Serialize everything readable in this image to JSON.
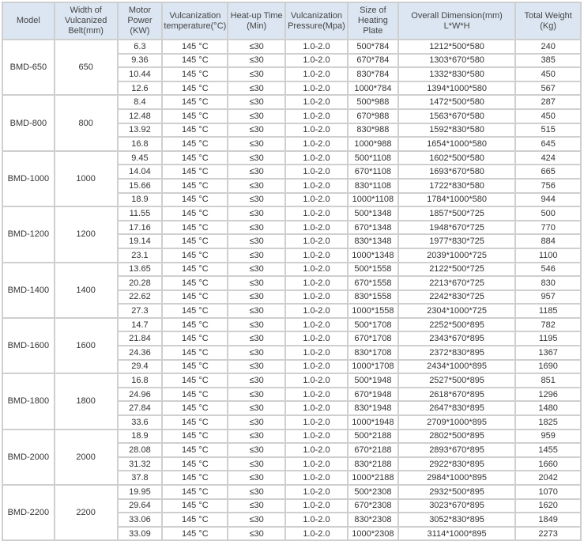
{
  "headers": [
    "Model",
    "Width of Vulcanized Belt(mm)",
    "Motor Power (KW)",
    "Vulcanization temperature(°C)",
    "Heat-up Time (Min)",
    "Vulcanization Pressure(Mpa)",
    "Size of Heating Plate",
    "Overall Dimension(mm) L*W*H",
    "Total Weight (Kg)"
  ],
  "colors": {
    "header_bg": "#dce6f2",
    "border": "#cfcfcf"
  },
  "groups": [
    {
      "model": "BMD-650",
      "width": "650",
      "rows": [
        [
          "6.3",
          "145 °C",
          "≤30",
          "1.0-2.0",
          "500*784",
          "1212*500*580",
          "240"
        ],
        [
          "9.36",
          "145 °C",
          "≤30",
          "1.0-2.0",
          "670*784",
          "1303*670*580",
          "385"
        ],
        [
          "10.44",
          "145 °C",
          "≤30",
          "1.0-2.0",
          "830*784",
          "1332*830*580",
          "450"
        ],
        [
          "12.6",
          "145 °C",
          "≤30",
          "1.0-2.0",
          "1000*784",
          "1394*1000*580",
          "567"
        ]
      ]
    },
    {
      "model": "BMD-800",
      "width": "800",
      "rows": [
        [
          "8.4",
          "145 °C",
          "≤30",
          "1.0-2.0",
          "500*988",
          "1472*500*580",
          "287"
        ],
        [
          "12.48",
          "145 °C",
          "≤30",
          "1.0-2.0",
          "670*988",
          "1563*670*580",
          "450"
        ],
        [
          "13.92",
          "145 °C",
          "≤30",
          "1.0-2.0",
          "830*988",
          "1592*830*580",
          "515"
        ],
        [
          "16.8",
          "145 °C",
          "≤30",
          "1.0-2.0",
          "1000*988",
          "1654*1000*580",
          "645"
        ]
      ]
    },
    {
      "model": "BMD-1000",
      "width": "1000",
      "rows": [
        [
          "9.45",
          "145 °C",
          "≤30",
          "1.0-2.0",
          "500*1108",
          "1602*500*580",
          "424"
        ],
        [
          "14.04",
          "145 °C",
          "≤30",
          "1.0-2.0",
          "670*1108",
          "1693*670*580",
          "665"
        ],
        [
          "15.66",
          "145 °C",
          "≤30",
          "1.0-2.0",
          "830*1108",
          "1722*830*580",
          "756"
        ],
        [
          "18.9",
          "145 °C",
          "≤30",
          "1.0-2.0",
          "1000*1108",
          "1784*1000*580",
          "944"
        ]
      ]
    },
    {
      "model": "BMD-1200",
      "width": "1200",
      "rows": [
        [
          "11.55",
          "145 °C",
          "≤30",
          "1.0-2.0",
          "500*1348",
          "1857*500*725",
          "500"
        ],
        [
          "17.16",
          "145 °C",
          "≤30",
          "1.0-2.0",
          "670*1348",
          "1948*670*725",
          "770"
        ],
        [
          "19.14",
          "145 °C",
          "≤30",
          "1.0-2.0",
          "830*1348",
          "1977*830*725",
          "884"
        ],
        [
          "23.1",
          "145 °C",
          "≤30",
          "1.0-2.0",
          "1000*1348",
          "2039*1000*725",
          "1100"
        ]
      ]
    },
    {
      "model": "BMD-1400",
      "width": "1400",
      "rows": [
        [
          "13.65",
          "145 °C",
          "≤30",
          "1.0-2.0",
          "500*1558",
          "2122*500*725",
          "546"
        ],
        [
          "20.28",
          "145 °C",
          "≤30",
          "1.0-2.0",
          "670*1558",
          "2213*670*725",
          "830"
        ],
        [
          "22.62",
          "145 °C",
          "≤30",
          "1.0-2.0",
          "830*1558",
          "2242*830*725",
          "957"
        ],
        [
          "27.3",
          "145 °C",
          "≤30",
          "1.0-2.0",
          "1000*1558",
          "2304*1000*725",
          "1185"
        ]
      ]
    },
    {
      "model": "BMD-1600",
      "width": "1600",
      "rows": [
        [
          "14.7",
          "145 °C",
          "≤30",
          "1.0-2.0",
          "500*1708",
          "2252*500*895",
          "782"
        ],
        [
          "21.84",
          "145 °C",
          "≤30",
          "1.0-2.0",
          "670*1708",
          "2343*670*895",
          "1195"
        ],
        [
          "24.36",
          "145 °C",
          "≤30",
          "1.0-2.0",
          "830*1708",
          "2372*830*895",
          "1367"
        ],
        [
          "29.4",
          "145 °C",
          "≤30",
          "1.0-2.0",
          "1000*1708",
          "2434*1000*895",
          "1690"
        ]
      ]
    },
    {
      "model": "BMD-1800",
      "width": "1800",
      "rows": [
        [
          "16.8",
          "145 °C",
          "≤30",
          "1.0-2.0",
          "500*1948",
          "2527*500*895",
          "851"
        ],
        [
          "24.96",
          "145 °C",
          "≤30",
          "1.0-2.0",
          "670*1948",
          "2618*670*895",
          "1296"
        ],
        [
          "27.84",
          "145 °C",
          "≤30",
          "1.0-2.0",
          "830*1948",
          "2647*830*895",
          "1480"
        ],
        [
          "33.6",
          "145 °C",
          "≤30",
          "1.0-2.0",
          "1000*1948",
          "2709*1000*895",
          "1825"
        ]
      ]
    },
    {
      "model": "BMD-2000",
      "width": "2000",
      "rows": [
        [
          "18.9",
          "145 °C",
          "≤30",
          "1.0-2.0",
          "500*2188",
          "2802*500*895",
          "959"
        ],
        [
          "28.08",
          "145 °C",
          "≤30",
          "1.0-2.0",
          "670*2188",
          "2893*670*895",
          "1455"
        ],
        [
          "31.32",
          "145 °C",
          "≤30",
          "1.0-2.0",
          "830*2188",
          "2922*830*895",
          "1660"
        ],
        [
          "37.8",
          "145 °C",
          "≤30",
          "1.0-2.0",
          "1000*2188",
          "2984*1000*895",
          "2042"
        ]
      ]
    },
    {
      "model": "BMD-2200",
      "width": "2200",
      "rows": [
        [
          "19.95",
          "145 °C",
          "≤30",
          "1.0-2.0",
          "500*2308",
          "2932*500*895",
          "1070"
        ],
        [
          "29.64",
          "145 °C",
          "≤30",
          "1.0-2.0",
          "670*2308",
          "3023*670*895",
          "1620"
        ],
        [
          "33.06",
          "145 °C",
          "≤30",
          "1.0-2.0",
          "830*2308",
          "3052*830*895",
          "1849"
        ],
        [
          "33.09",
          "145 °C",
          "≤30",
          "1.0-2.0",
          "1000*2308",
          "3114*1000*895",
          "2273"
        ]
      ]
    }
  ]
}
